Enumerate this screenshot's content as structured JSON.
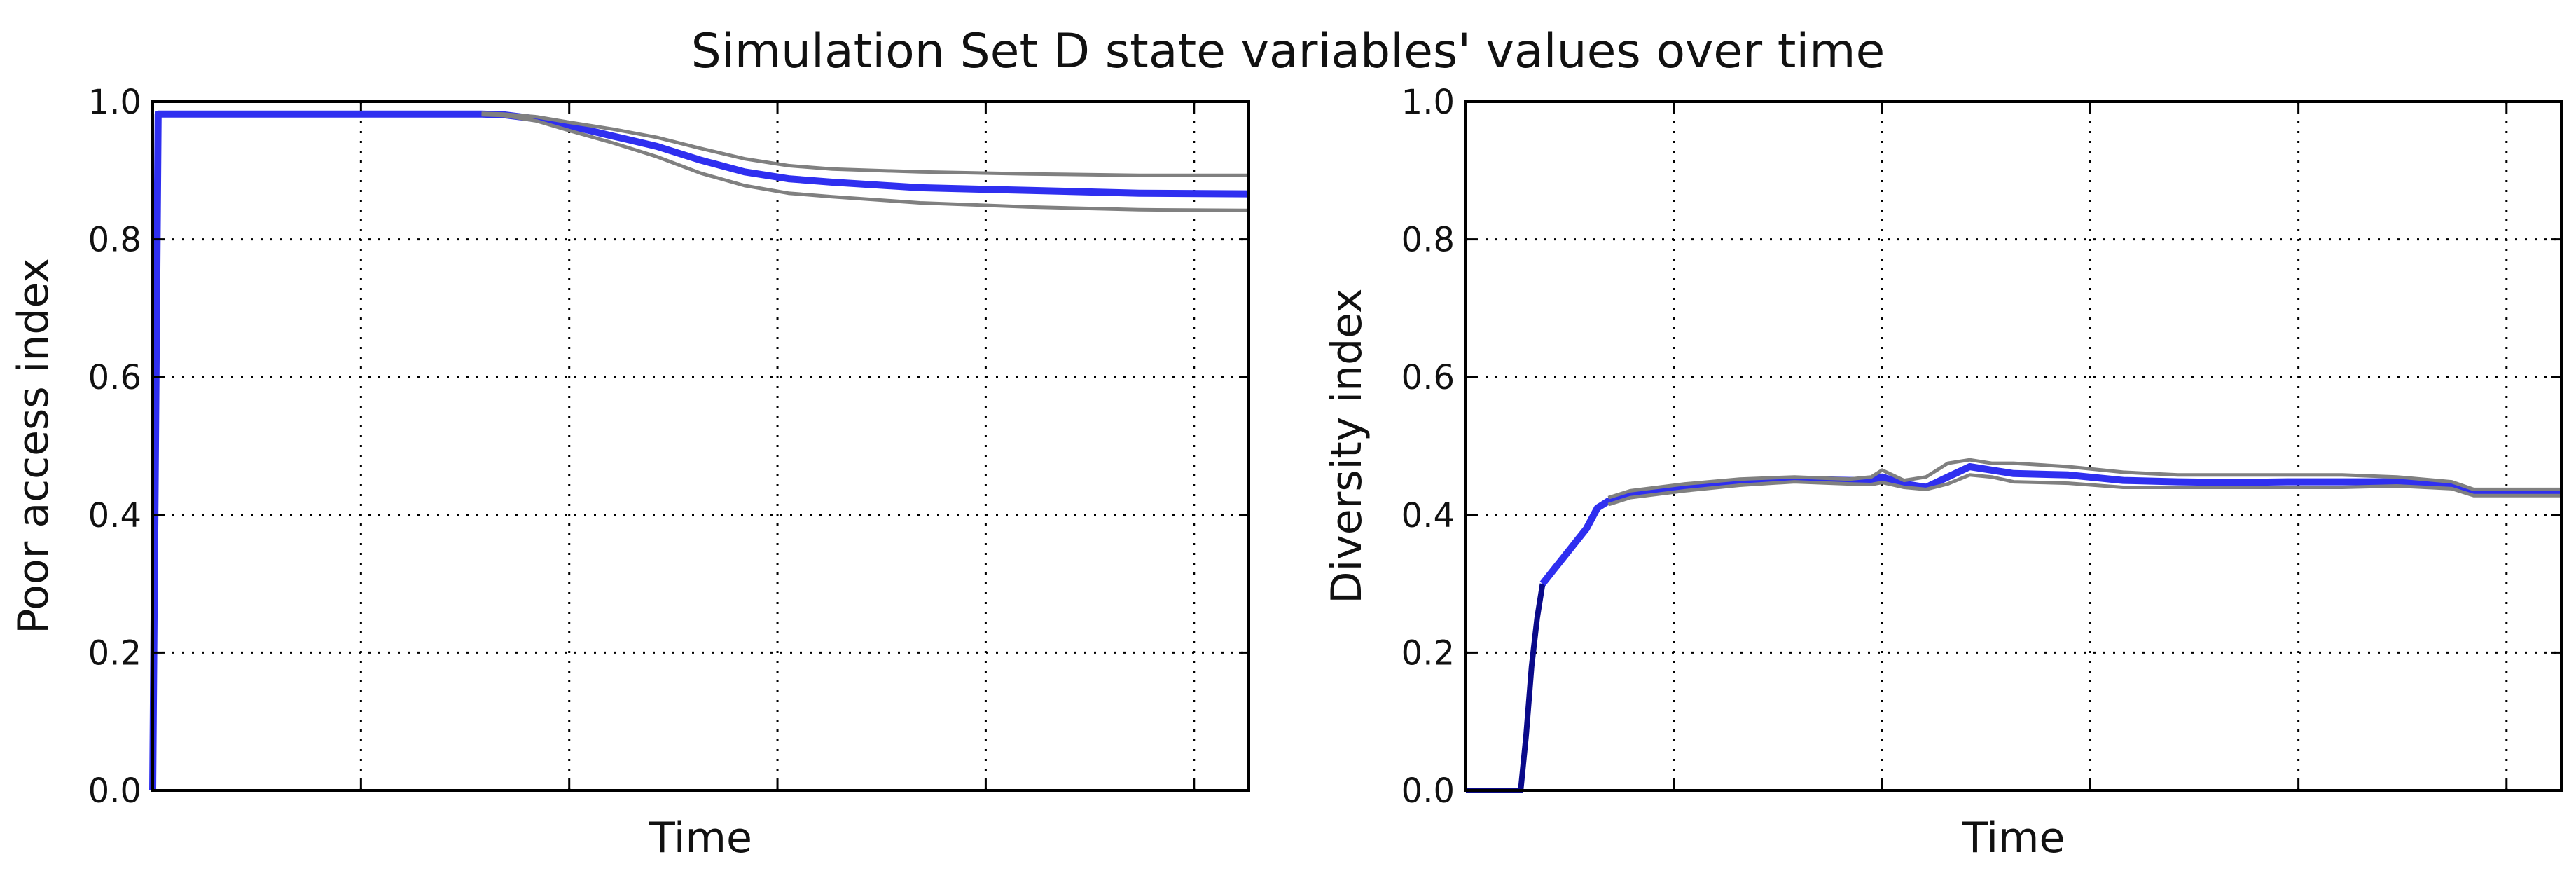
{
  "figure_title": "Simulation Set D state variables' values over time",
  "colors": {
    "mean_line": "#2f2ff0",
    "band_line": "#808080",
    "initial_segment": "#0a0a8a",
    "frame": "#000000",
    "grid": "#000000"
  },
  "chart_data": [
    {
      "type": "line",
      "title": "",
      "xlabel": "Time",
      "ylabel": "Poor access index",
      "xlim": [
        0,
        1
      ],
      "ylim": [
        0.0,
        1.0
      ],
      "x_grid": [
        0.19,
        0.38,
        0.57,
        0.76,
        0.95
      ],
      "y_ticks": [
        0.0,
        0.2,
        0.4,
        0.6,
        0.8,
        1.0
      ],
      "y_tick_labels": [
        "0.0",
        "0.2",
        "0.4",
        "0.6",
        "0.8",
        "1.0"
      ],
      "grid": true,
      "series": [
        {
          "name": "mean",
          "style": "mean",
          "x": [
            0,
            0.005,
            0.1,
            0.2,
            0.3,
            0.32,
            0.35,
            0.38,
            0.42,
            0.46,
            0.5,
            0.54,
            0.58,
            0.62,
            0.7,
            0.8,
            0.9,
            1.0
          ],
          "y": [
            0.0,
            0.982,
            0.982,
            0.982,
            0.982,
            0.981,
            0.975,
            0.965,
            0.95,
            0.935,
            0.915,
            0.898,
            0.888,
            0.883,
            0.875,
            0.871,
            0.867,
            0.866
          ]
        },
        {
          "name": "upper",
          "style": "band",
          "x": [
            0.3,
            0.32,
            0.35,
            0.38,
            0.42,
            0.46,
            0.5,
            0.54,
            0.58,
            0.62,
            0.7,
            0.8,
            0.9,
            1.0
          ],
          "y": [
            0.983,
            0.982,
            0.978,
            0.97,
            0.96,
            0.948,
            0.932,
            0.917,
            0.907,
            0.902,
            0.898,
            0.895,
            0.893,
            0.893
          ]
        },
        {
          "name": "lower",
          "style": "band",
          "x": [
            0.3,
            0.32,
            0.35,
            0.38,
            0.42,
            0.46,
            0.5,
            0.54,
            0.58,
            0.62,
            0.7,
            0.8,
            0.9,
            1.0
          ],
          "y": [
            0.981,
            0.98,
            0.972,
            0.958,
            0.94,
            0.92,
            0.896,
            0.878,
            0.867,
            0.862,
            0.853,
            0.847,
            0.843,
            0.842
          ]
        }
      ]
    },
    {
      "type": "line",
      "title": "",
      "xlabel": "Time",
      "ylabel": "Diversity index",
      "xlim": [
        0,
        1
      ],
      "ylim": [
        0.0,
        1.0
      ],
      "x_grid": [
        0.19,
        0.38,
        0.57,
        0.76,
        0.95
      ],
      "y_ticks": [
        0.0,
        0.2,
        0.4,
        0.6,
        0.8,
        1.0
      ],
      "y_tick_labels": [
        "0.0",
        "0.2",
        "0.4",
        "0.6",
        "0.8",
        "1.0"
      ],
      "grid": true,
      "series": [
        {
          "name": "initial",
          "style": "initial",
          "x": [
            0,
            0.045,
            0.05,
            0.055,
            0.06,
            0.065,
            0.07
          ],
          "y": [
            0.0,
            0.0,
            0.0,
            0.08,
            0.18,
            0.25,
            0.3
          ]
        },
        {
          "name": "mean",
          "style": "mean",
          "x": [
            0.07,
            0.08,
            0.09,
            0.1,
            0.11,
            0.12,
            0.13,
            0.15,
            0.2,
            0.25,
            0.3,
            0.35,
            0.37,
            0.38,
            0.4,
            0.42,
            0.44,
            0.46,
            0.48,
            0.5,
            0.55,
            0.6,
            0.65,
            0.7,
            0.75,
            0.8,
            0.85,
            0.9,
            0.92,
            0.95,
            1.0
          ],
          "y": [
            0.3,
            0.32,
            0.34,
            0.36,
            0.38,
            0.41,
            0.42,
            0.43,
            0.44,
            0.448,
            0.452,
            0.45,
            0.45,
            0.455,
            0.445,
            0.44,
            0.455,
            0.47,
            0.465,
            0.46,
            0.458,
            0.45,
            0.448,
            0.447,
            0.448,
            0.448,
            0.448,
            0.443,
            0.432,
            0.432,
            0.432
          ]
        },
        {
          "name": "upper",
          "style": "band",
          "x": [
            0.13,
            0.15,
            0.2,
            0.25,
            0.3,
            0.35,
            0.37,
            0.38,
            0.4,
            0.42,
            0.44,
            0.46,
            0.48,
            0.5,
            0.55,
            0.6,
            0.65,
            0.7,
            0.75,
            0.8,
            0.85,
            0.9,
            0.92,
            0.95,
            1.0
          ],
          "y": [
            0.425,
            0.435,
            0.445,
            0.452,
            0.455,
            0.452,
            0.455,
            0.465,
            0.45,
            0.455,
            0.475,
            0.48,
            0.475,
            0.475,
            0.47,
            0.462,
            0.458,
            0.458,
            0.458,
            0.458,
            0.455,
            0.448,
            0.437,
            0.437,
            0.437
          ]
        },
        {
          "name": "lower",
          "style": "band",
          "x": [
            0.13,
            0.15,
            0.2,
            0.25,
            0.3,
            0.35,
            0.37,
            0.38,
            0.4,
            0.42,
            0.44,
            0.46,
            0.48,
            0.5,
            0.55,
            0.6,
            0.65,
            0.7,
            0.75,
            0.8,
            0.85,
            0.9,
            0.92,
            0.95,
            1.0
          ],
          "y": [
            0.415,
            0.425,
            0.435,
            0.443,
            0.448,
            0.445,
            0.444,
            0.447,
            0.44,
            0.437,
            0.445,
            0.458,
            0.455,
            0.448,
            0.446,
            0.44,
            0.44,
            0.44,
            0.44,
            0.44,
            0.442,
            0.438,
            0.428,
            0.428,
            0.428
          ]
        }
      ]
    }
  ]
}
